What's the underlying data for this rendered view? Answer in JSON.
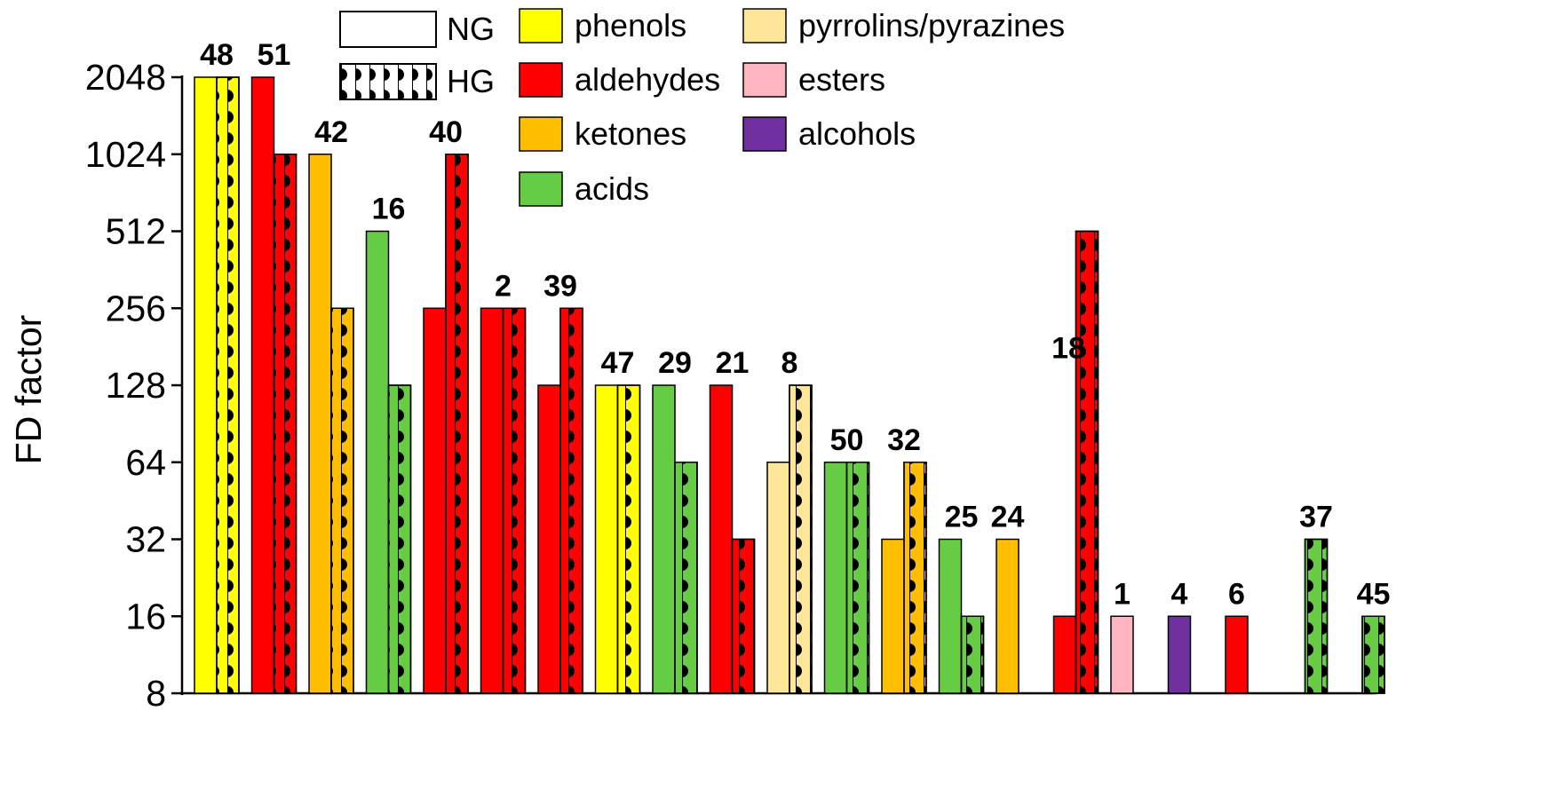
{
  "chart_data": {
    "type": "bar",
    "ylabel": "FD factor",
    "yscale": "log2",
    "ylim": [
      8,
      2048
    ],
    "yticks": [
      "8",
      "16",
      "32",
      "64",
      "128",
      "256",
      "512",
      "1024",
      "2048"
    ],
    "groups_legend": [
      {
        "key": "NG",
        "label": "NG",
        "pattern": "solid"
      },
      {
        "key": "HG",
        "label": "HG",
        "pattern": "dotted"
      }
    ],
    "class_colors": {
      "phenols": "#FFFF00",
      "aldehydes": "#FF0000",
      "ketones": "#FFBF00",
      "acids": "#66CC44",
      "pyrrolins/pyrazines": "#FFE699",
      "esters": "#FFB6C1",
      "alcohols": "#7030A0"
    },
    "class_legend": [
      {
        "name": "phenols",
        "label": "phenols"
      },
      {
        "name": "aldehydes",
        "label": "aldehydes"
      },
      {
        "name": "ketones",
        "label": "ketones"
      },
      {
        "name": "acids",
        "label": "acids"
      },
      {
        "name": "pyrrolins/pyrazines",
        "label": "pyrrolins/pyrazines"
      },
      {
        "name": "esters",
        "label": "esters"
      },
      {
        "name": "alcohols",
        "label": "alcohols"
      }
    ],
    "compounds": [
      {
        "label": "48",
        "class": "phenols",
        "NG": 2048,
        "HG": 2048
      },
      {
        "label": "51",
        "class": "aldehydes",
        "NG": 2048,
        "HG": 1024
      },
      {
        "label": "42",
        "class": "ketones",
        "NG": 1024,
        "HG": 256
      },
      {
        "label": "16",
        "class": "acids",
        "NG": 512,
        "HG": 128
      },
      {
        "label": "40",
        "class": "aldehydes",
        "NG": 256,
        "HG": 1024
      },
      {
        "label": "2",
        "class": "aldehydes",
        "NG": 256,
        "HG": 256
      },
      {
        "label": "39",
        "class": "aldehydes",
        "NG": 128,
        "HG": 256
      },
      {
        "label": "47",
        "class": "phenols",
        "NG": 128,
        "HG": 128
      },
      {
        "label": "29",
        "class": "acids",
        "NG": 128,
        "HG": 64
      },
      {
        "label": "21",
        "class": "aldehydes",
        "NG": 128,
        "HG": 32
      },
      {
        "label": "8",
        "class": "pyrrolins/pyrazines",
        "NG": 64,
        "HG": 128
      },
      {
        "label": "50",
        "class": "acids",
        "NG": 64,
        "HG": 64
      },
      {
        "label": "32",
        "class": "ketones",
        "NG": 32,
        "HG": 64
      },
      {
        "label": "25",
        "class": "acids",
        "NG": 32,
        "HG": 16
      },
      {
        "label": "24",
        "class": "ketones",
        "NG": 32,
        "HG": null
      },
      {
        "label": "18",
        "class": "aldehydes",
        "NG": 16,
        "HG": 512
      },
      {
        "label": "1",
        "class": "esters",
        "NG": 16,
        "HG": null
      },
      {
        "label": "4",
        "class": "alcohols",
        "NG": 16,
        "HG": null
      },
      {
        "label": "6",
        "class": "aldehydes",
        "NG": 16,
        "HG": null
      },
      {
        "label": "37",
        "class": "acids",
        "NG": null,
        "HG": 32
      },
      {
        "label": "45",
        "class": "acids",
        "NG": null,
        "HG": 16
      }
    ]
  }
}
